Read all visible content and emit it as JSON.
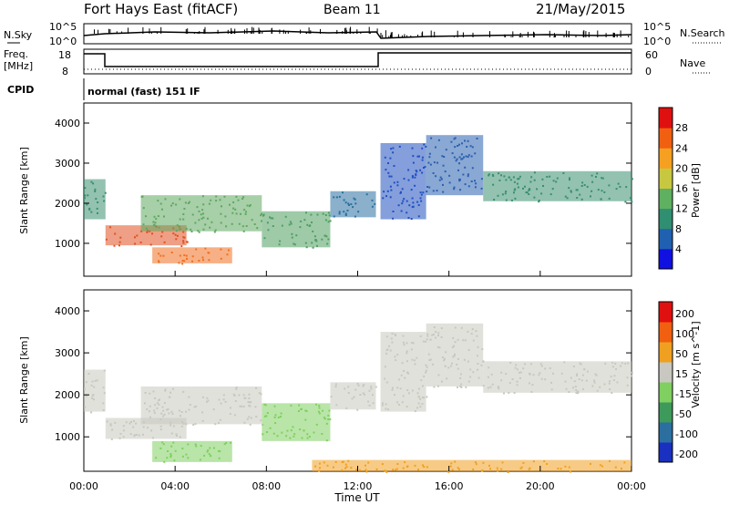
{
  "header": {
    "radar": "Fort Hays East (fitACF)",
    "beam": "Beam 11",
    "date": "21/May/2015"
  },
  "noise_panel": {
    "left_label": "N.Sky",
    "right_label": "N.Search",
    "left_ticks": [
      "10^5",
      "10^0"
    ],
    "right_ticks": [
      "10^5",
      "10^0"
    ]
  },
  "freq_panel": {
    "left_label_1": "Freq.",
    "left_label_2": "[MHz]",
    "right_label": "Nave",
    "left_ticks": [
      "18",
      "8"
    ],
    "right_ticks": [
      "60",
      "0"
    ]
  },
  "cpid": {
    "label": "CPID",
    "text": "normal (fast) 151 IF"
  },
  "chart_data": [
    {
      "type": "heatmap",
      "panel": "power",
      "ylabel": "Slant Range [km]",
      "y_ticks": [
        "1000",
        "2000",
        "3000",
        "4000"
      ],
      "ylim": [
        180,
        4500
      ],
      "xlim_hours": [
        0,
        24
      ],
      "colorbar": {
        "label": "Power [dB]",
        "ticks": [
          "4",
          "8",
          "12",
          "16",
          "20",
          "24",
          "28"
        ],
        "colors": [
          "#1010e0",
          "#2060b0",
          "#2f8f70",
          "#5fb060",
          "#c8c840",
          "#f5a020",
          "#f06010",
          "#e01010"
        ]
      },
      "bands": [
        {
          "t0": 0.0,
          "t1": 0.95,
          "r0": 1600,
          "r1": 2600,
          "color": "#3a8f70"
        },
        {
          "t0": 0.95,
          "t1": 4.5,
          "r0": 950,
          "r1": 1450,
          "color": "#e05020"
        },
        {
          "t0": 2.5,
          "t1": 7.8,
          "r0": 1300,
          "r1": 2200,
          "color": "#5fa860"
        },
        {
          "t0": 3.0,
          "t1": 6.5,
          "r0": 500,
          "r1": 900,
          "color": "#f07020"
        },
        {
          "t0": 7.8,
          "t1": 10.8,
          "r0": 900,
          "r1": 1800,
          "color": "#4f9f60"
        },
        {
          "t0": 10.8,
          "t1": 12.8,
          "r0": 1650,
          "r1": 2300,
          "color": "#2a70a0"
        },
        {
          "t0": 13.0,
          "t1": 15.0,
          "r0": 1600,
          "r1": 3500,
          "color": "#2050c0"
        },
        {
          "t0": 15.0,
          "t1": 17.5,
          "r0": 2200,
          "r1": 3700,
          "color": "#2a60b0"
        },
        {
          "t0": 17.5,
          "t1": 24.0,
          "r0": 2050,
          "r1": 2800,
          "color": "#3a8f70"
        }
      ]
    },
    {
      "type": "heatmap",
      "panel": "velocity",
      "ylabel": "Slant Range [km]",
      "y_ticks": [
        "1000",
        "2000",
        "3000",
        "4000"
      ],
      "ylim": [
        180,
        4500
      ],
      "xlim_hours": [
        0,
        24
      ],
      "x_ticks": [
        "00:00",
        "04:00",
        "08:00",
        "12:00",
        "16:00",
        "20:00",
        "00:00"
      ],
      "xlabel": "Time UT",
      "colorbar": {
        "label": "Velocity [m s^-1]",
        "ticks": [
          "200",
          "100",
          "50",
          "15",
          "-15",
          "-50",
          "-100",
          "-200"
        ],
        "colors": [
          "#1a30c0",
          "#2b6fa0",
          "#3d9a5a",
          "#7fd060",
          "#c8c8c0",
          "#f0a020",
          "#f06010",
          "#e01010"
        ]
      },
      "bands": [
        {
          "t0": 0.0,
          "t1": 0.95,
          "r0": 1600,
          "r1": 2600,
          "color": "#c8c8c0"
        },
        {
          "t0": 0.95,
          "t1": 4.5,
          "r0": 950,
          "r1": 1450,
          "color": "#c8c8c0"
        },
        {
          "t0": 2.5,
          "t1": 7.8,
          "r0": 1300,
          "r1": 2200,
          "color": "#c8c8c0"
        },
        {
          "t0": 3.0,
          "t1": 6.5,
          "r0": 400,
          "r1": 900,
          "color": "#7fd060"
        },
        {
          "t0": 7.8,
          "t1": 10.8,
          "r0": 900,
          "r1": 1800,
          "color": "#7fd060"
        },
        {
          "t0": 10.8,
          "t1": 12.8,
          "r0": 1650,
          "r1": 2300,
          "color": "#c8c8c0"
        },
        {
          "t0": 13.0,
          "t1": 15.0,
          "r0": 1600,
          "r1": 3500,
          "color": "#c8c8c0"
        },
        {
          "t0": 15.0,
          "t1": 17.5,
          "r0": 2200,
          "r1": 3700,
          "color": "#c8c8c0"
        },
        {
          "t0": 17.5,
          "t1": 24.0,
          "r0": 2050,
          "r1": 2800,
          "color": "#c8c8c0"
        },
        {
          "t0": 10.0,
          "t1": 24.0,
          "r0": 180,
          "r1": 450,
          "color": "#f0a020"
        }
      ]
    }
  ]
}
